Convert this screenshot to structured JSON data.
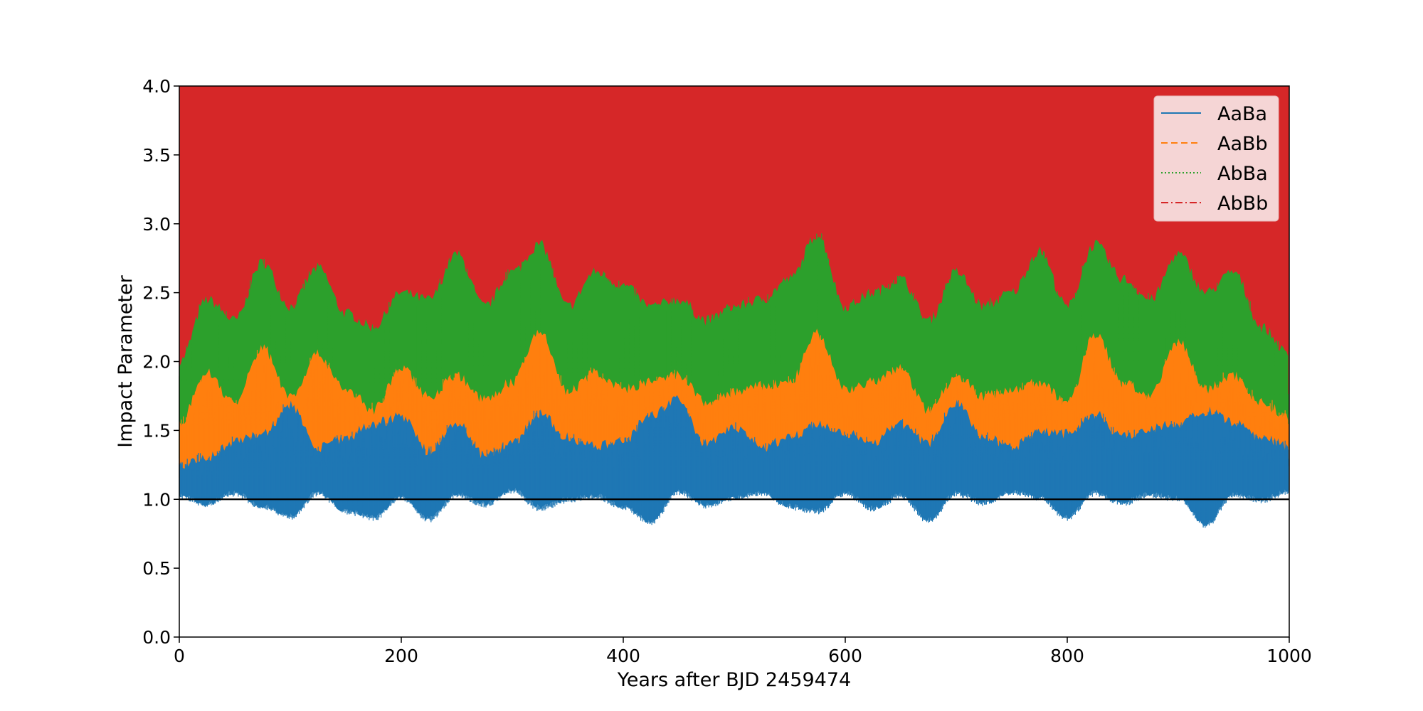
{
  "chart_data": {
    "type": "line",
    "title": "",
    "xlabel": "Years after BJD 2459474",
    "ylabel": "Impact Parameter",
    "xlim": [
      0,
      1000
    ],
    "ylim": [
      0,
      4.0
    ],
    "x_ticks": [
      0,
      200,
      400,
      600,
      800,
      1000
    ],
    "y_ticks": [
      "0.0",
      "0.5",
      "1.0",
      "1.5",
      "2.0",
      "2.5",
      "3.0",
      "3.5",
      "4.0"
    ],
    "reference_line": {
      "y": 1.0,
      "color": "#000000"
    },
    "legend_position": "top-right",
    "grid": false,
    "series": [
      {
        "name": "AaBa",
        "color": "#1f77b4",
        "style": "solid",
        "envelope": {
          "x": [
            0,
            25,
            50,
            75,
            100,
            125,
            150,
            175,
            200,
            225,
            250,
            275,
            300,
            325,
            350,
            375,
            400,
            425,
            450,
            475,
            500,
            525,
            550,
            575,
            600,
            625,
            650,
            675,
            700,
            725,
            750,
            775,
            800,
            825,
            850,
            875,
            900,
            925,
            950,
            975,
            1000
          ],
          "low": [
            1.03,
            0.97,
            1.05,
            0.95,
            0.88,
            1.05,
            0.92,
            0.87,
            1.02,
            0.86,
            1.04,
            0.97,
            1.07,
            0.94,
            1.0,
            1.03,
            0.95,
            0.84,
            1.06,
            0.96,
            1.02,
            1.05,
            0.95,
            0.92,
            1.05,
            0.94,
            1.03,
            0.85,
            1.05,
            0.98,
            1.06,
            1.02,
            0.87,
            1.05,
            0.98,
            1.04,
            1.01,
            0.82,
            1.04,
            1.0,
            1.06
          ],
          "high": [
            1.25,
            1.3,
            1.42,
            1.47,
            1.68,
            1.37,
            1.45,
            1.55,
            1.6,
            1.35,
            1.55,
            1.32,
            1.4,
            1.62,
            1.45,
            1.38,
            1.42,
            1.62,
            1.72,
            1.4,
            1.52,
            1.38,
            1.45,
            1.55,
            1.48,
            1.42,
            1.55,
            1.4,
            1.7,
            1.45,
            1.38,
            1.5,
            1.48,
            1.62,
            1.45,
            1.52,
            1.55,
            1.64,
            1.55,
            1.45,
            1.38
          ]
        }
      },
      {
        "name": "AaBb",
        "color": "#ff7f0e",
        "style": "dashed",
        "envelope": {
          "x": [
            0,
            25,
            50,
            75,
            100,
            125,
            150,
            175,
            200,
            225,
            250,
            275,
            300,
            325,
            350,
            375,
            400,
            425,
            450,
            475,
            500,
            525,
            550,
            575,
            600,
            625,
            650,
            675,
            700,
            725,
            750,
            775,
            800,
            825,
            850,
            875,
            900,
            925,
            950,
            975,
            1000
          ],
          "low": [
            1.18,
            1.12,
            1.25,
            1.1,
            1.05,
            1.22,
            1.08,
            1.02,
            1.2,
            1.02,
            1.22,
            1.12,
            1.25,
            1.1,
            1.15,
            1.2,
            1.12,
            1.0,
            1.25,
            1.12,
            1.2,
            1.22,
            1.12,
            1.08,
            1.22,
            1.1,
            1.2,
            1.02,
            1.22,
            1.15,
            1.25,
            1.2,
            1.05,
            1.22,
            1.15,
            1.22,
            1.18,
            1.0,
            1.22,
            1.18,
            1.25
          ],
          "high": [
            1.55,
            1.92,
            1.7,
            2.1,
            1.75,
            2.05,
            1.8,
            1.65,
            1.95,
            1.75,
            1.9,
            1.72,
            1.85,
            2.22,
            1.78,
            1.92,
            1.8,
            1.85,
            1.9,
            1.7,
            1.78,
            1.82,
            1.85,
            2.2,
            1.8,
            1.85,
            1.95,
            1.65,
            1.9,
            1.75,
            1.8,
            1.85,
            1.7,
            2.2,
            1.85,
            1.75,
            2.15,
            1.8,
            1.9,
            1.7,
            1.6
          ]
        }
      },
      {
        "name": "AbBa",
        "color": "#2ca02c",
        "style": "dotted",
        "envelope": {
          "x": [
            0,
            25,
            50,
            75,
            100,
            125,
            150,
            175,
            200,
            225,
            250,
            275,
            300,
            325,
            350,
            375,
            400,
            425,
            450,
            475,
            500,
            525,
            550,
            575,
            600,
            625,
            650,
            675,
            700,
            725,
            750,
            775,
            800,
            825,
            850,
            875,
            900,
            925,
            950,
            975,
            1000
          ],
          "low": [
            1.3,
            1.25,
            1.38,
            1.22,
            1.18,
            1.35,
            1.2,
            1.15,
            1.32,
            1.15,
            1.35,
            1.25,
            1.38,
            1.22,
            1.28,
            1.32,
            1.25,
            1.12,
            1.38,
            1.25,
            1.32,
            1.35,
            1.25,
            1.2,
            1.35,
            1.22,
            1.32,
            1.15,
            1.35,
            1.28,
            1.38,
            1.32,
            1.18,
            1.35,
            1.28,
            1.35,
            1.3,
            1.12,
            1.35,
            1.3,
            1.38
          ],
          "high": [
            2.0,
            2.45,
            2.3,
            2.72,
            2.4,
            2.68,
            2.35,
            2.25,
            2.5,
            2.45,
            2.78,
            2.4,
            2.65,
            2.85,
            2.4,
            2.65,
            2.55,
            2.4,
            2.45,
            2.3,
            2.4,
            2.45,
            2.6,
            2.92,
            2.4,
            2.5,
            2.6,
            2.3,
            2.65,
            2.4,
            2.5,
            2.8,
            2.4,
            2.85,
            2.6,
            2.45,
            2.78,
            2.5,
            2.65,
            2.25,
            2.05
          ]
        }
      },
      {
        "name": "AbBb",
        "color": "#d62728",
        "style": "dashdot",
        "fill_to": 4.0
      }
    ]
  }
}
